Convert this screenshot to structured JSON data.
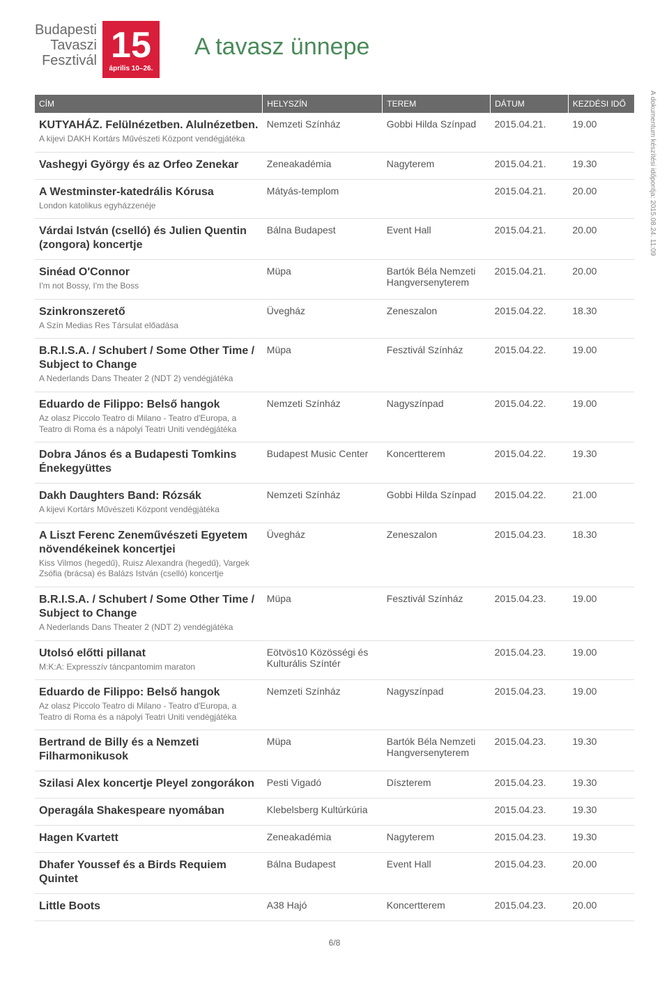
{
  "logo": {
    "line1": "Budapesti",
    "line2": "Tavaszi",
    "line3": "Fesztivál",
    "big_number": "15",
    "date_range": "április 10–26."
  },
  "page_title": "A tavasz ünnepe",
  "side_note": "A dokumentum készítési időpontja: 2015.08.24. 11:09",
  "columns": {
    "title": "CÍM",
    "venue": "HELYSZÍN",
    "room": "TEREM",
    "date": "DÁTUM",
    "time": "KEZDÉSI IDŐ"
  },
  "events": [
    {
      "title": "KUTYAHÁZ. Felülnézetben. Alulnézetben.",
      "sub": "A kijevi DAKH Kortárs Művészeti Központ vendégjátéka",
      "venue": "Nemzeti Színház",
      "room": "Gobbi Hilda Színpad",
      "date": "2015.04.21.",
      "time": "19.00"
    },
    {
      "title": "Vashegyi György és az Orfeo Zenekar",
      "sub": "",
      "venue": "Zeneakadémia",
      "room": "Nagyterem",
      "date": "2015.04.21.",
      "time": "19.30"
    },
    {
      "title": "A Westminster-katedrális Kórusa",
      "sub": "London katolikus egyházzenéje",
      "venue": "Mátyás-templom",
      "room": "",
      "date": "2015.04.21.",
      "time": "20.00"
    },
    {
      "title": "Várdai István (cselló) és Julien Quentin (zongora) koncertje",
      "sub": "",
      "venue": "Bálna Budapest",
      "room": "Event Hall",
      "date": "2015.04.21.",
      "time": "20.00"
    },
    {
      "title": "Sinéad O'Connor",
      "sub": "I'm not Bossy, I'm the Boss",
      "venue": "Müpa",
      "room": "Bartók Béla Nemzeti Hangversenyterem",
      "date": "2015.04.21.",
      "time": "20.00"
    },
    {
      "title": "Szinkronszerető",
      "sub": "A Szín Medias Res Társulat előadása",
      "venue": "Üvegház",
      "room": "Zeneszalon",
      "date": "2015.04.22.",
      "time": "18.30"
    },
    {
      "title": "B.R.I.S.A. / Schubert / Some Other Time / Subject to Change",
      "sub": "A Nederlands Dans Theater 2 (NDT 2) vendégjátéka",
      "venue": "Müpa",
      "room": "Fesztivál Színház",
      "date": "2015.04.22.",
      "time": "19.00"
    },
    {
      "title": "Eduardo de Filippo: Belső hangok",
      "sub": "Az olasz Piccolo Teatro di Milano - Teatro d'Europa, a Teatro di Roma és a nápolyi Teatri Uniti vendégjátéka",
      "venue": "Nemzeti Színház",
      "room": "Nagyszínpad",
      "date": "2015.04.22.",
      "time": "19.00"
    },
    {
      "title": "Dobra János és a Budapesti Tomkins Énekegyüttes",
      "sub": "",
      "venue": "Budapest Music Center",
      "room": "Koncertterem",
      "date": "2015.04.22.",
      "time": "19.30"
    },
    {
      "title": "Dakh Daughters Band: Rózsák",
      "sub": "A kijevi Kortárs Művészeti Központ vendégjátéka",
      "venue": "Nemzeti Színház",
      "room": "Gobbi Hilda Színpad",
      "date": "2015.04.22.",
      "time": "21.00"
    },
    {
      "title": "A Liszt Ferenc Zeneművészeti Egyetem növendékeinek koncertjei",
      "sub": "Kiss Vilmos (hegedű), Ruisz Alexandra (hegedű), Vargek Zsófia (brácsa) és Balázs István (cselló) koncertje",
      "venue": "Üvegház",
      "room": "Zeneszalon",
      "date": "2015.04.23.",
      "time": "18.30"
    },
    {
      "title": "B.R.I.S.A. / Schubert / Some Other Time / Subject to Change",
      "sub": "A Nederlands Dans Theater 2 (NDT 2) vendégjátéka",
      "venue": "Müpa",
      "room": "Fesztivál Színház",
      "date": "2015.04.23.",
      "time": "19.00"
    },
    {
      "title": "Utolsó előtti pillanat",
      "sub": "M:K:A: Expresszív táncpantomim maraton",
      "venue": "Eötvös10 Közösségi és Kulturális Színtér",
      "room": "",
      "date": "2015.04.23.",
      "time": "19.00"
    },
    {
      "title": "Eduardo de Filippo: Belső hangok",
      "sub": "Az olasz Piccolo Teatro di Milano - Teatro d'Europa, a Teatro di Roma és a nápolyi Teatri Uniti vendégjátéka",
      "venue": "Nemzeti Színház",
      "room": "Nagyszínpad",
      "date": "2015.04.23.",
      "time": "19.00"
    },
    {
      "title": "Bertrand de Billy és a Nemzeti Filharmonikusok",
      "sub": "",
      "venue": "Müpa",
      "room": "Bartók Béla Nemzeti Hangversenyterem",
      "date": "2015.04.23.",
      "time": "19.30"
    },
    {
      "title": "Szilasi Alex koncertje Pleyel zongorákon",
      "sub": "",
      "venue": "Pesti Vigadó",
      "room": "Díszterem",
      "date": "2015.04.23.",
      "time": "19.30"
    },
    {
      "title": "Operagála Shakespeare nyomában",
      "sub": "",
      "venue": "Klebelsberg Kultúrkúria",
      "room": "",
      "date": "2015.04.23.",
      "time": "19.30"
    },
    {
      "title": "Hagen Kvartett",
      "sub": "",
      "venue": "Zeneakadémia",
      "room": "Nagyterem",
      "date": "2015.04.23.",
      "time": "19.30"
    },
    {
      "title": "Dhafer Youssef és a Birds Requiem Quintet",
      "sub": "",
      "venue": "Bálna Budapest",
      "room": "Event Hall",
      "date": "2015.04.23.",
      "time": "20.00"
    },
    {
      "title": "Little Boots",
      "sub": "",
      "venue": "A38 Hajó",
      "room": "Koncertterem",
      "date": "2015.04.23.",
      "time": "20.00"
    }
  ],
  "footer": "6/8"
}
